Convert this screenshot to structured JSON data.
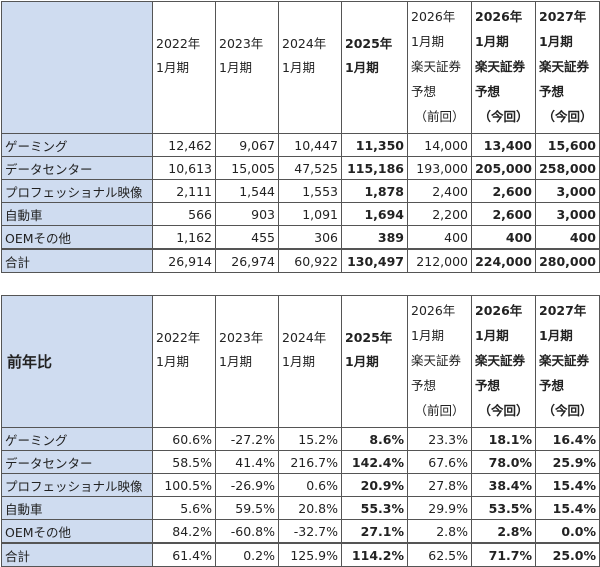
{
  "table1": {
    "corner_label": "",
    "headers": [
      [
        "2022年",
        "1月期"
      ],
      [
        "2023年",
        "1月期"
      ],
      [
        "2024年",
        "1月期"
      ],
      [
        "2025年",
        "1月期"
      ],
      [
        "2026年",
        "1月期",
        "楽天証券",
        "予想",
        "（前回）"
      ],
      [
        "2026年",
        "1月期",
        "楽天証券",
        "予想",
        "（今回）"
      ],
      [
        "2027年",
        "1月期",
        "楽天証券",
        "予想",
        "（今回）"
      ]
    ],
    "rows": [
      {
        "label": "ゲーミング",
        "values": [
          "12,462",
          "9,067",
          "10,447",
          "11,350",
          "14,000",
          "13,400",
          "15,600"
        ]
      },
      {
        "label": "データセンター",
        "values": [
          "10,613",
          "15,005",
          "47,525",
          "115,186",
          "193,000",
          "205,000",
          "258,000"
        ]
      },
      {
        "label": "プロフェッショナル映像",
        "values": [
          "2,111",
          "1,544",
          "1,553",
          "1,878",
          "2,400",
          "2,600",
          "3,000"
        ]
      },
      {
        "label": "自動車",
        "values": [
          "566",
          "903",
          "1,091",
          "1,694",
          "2,200",
          "2,600",
          "3,000"
        ]
      },
      {
        "label": "OEMその他",
        "values": [
          "1,162",
          "455",
          "306",
          "389",
          "400",
          "400",
          "400"
        ]
      }
    ],
    "total": {
      "label": "合計",
      "values": [
        "26,914",
        "26,974",
        "60,922",
        "130,497",
        "212,000",
        "224,000",
        "280,000"
      ]
    }
  },
  "table2": {
    "corner_label": "前年比",
    "headers": [
      [
        "2022年",
        "1月期"
      ],
      [
        "2023年",
        "1月期"
      ],
      [
        "2024年",
        "1月期"
      ],
      [
        "2025年",
        "1月期"
      ],
      [
        "2026年",
        "1月期",
        "楽天証券",
        "予想",
        "（前回）"
      ],
      [
        "2026年",
        "1月期",
        "楽天証券",
        "予想",
        "（今回）"
      ],
      [
        "2027年",
        "1月期",
        "楽天証券",
        "予想",
        "（今回）"
      ]
    ],
    "rows": [
      {
        "label": "ゲーミング",
        "values": [
          "60.6%",
          "-27.2%",
          "15.2%",
          "8.6%",
          "23.3%",
          "18.1%",
          "16.4%"
        ]
      },
      {
        "label": "データセンター",
        "values": [
          "58.5%",
          "41.4%",
          "216.7%",
          "142.4%",
          "67.6%",
          "78.0%",
          "25.9%"
        ]
      },
      {
        "label": "プロフェッショナル映像",
        "values": [
          "100.5%",
          "-26.9%",
          "0.6%",
          "20.9%",
          "27.8%",
          "38.4%",
          "15.4%"
        ]
      },
      {
        "label": "自動車",
        "values": [
          "5.6%",
          "59.5%",
          "20.8%",
          "55.3%",
          "29.9%",
          "53.5%",
          "15.4%"
        ]
      },
      {
        "label": "OEMその他",
        "values": [
          "84.2%",
          "-60.8%",
          "-32.7%",
          "27.1%",
          "2.8%",
          "2.8%",
          "0.0%"
        ]
      }
    ],
    "total": {
      "label": "合計",
      "values": [
        "61.4%",
        "0.2%",
        "125.9%",
        "114.2%",
        "62.5%",
        "71.7%",
        "25.0%"
      ]
    }
  },
  "bold_columns": [
    3,
    5,
    6
  ]
}
